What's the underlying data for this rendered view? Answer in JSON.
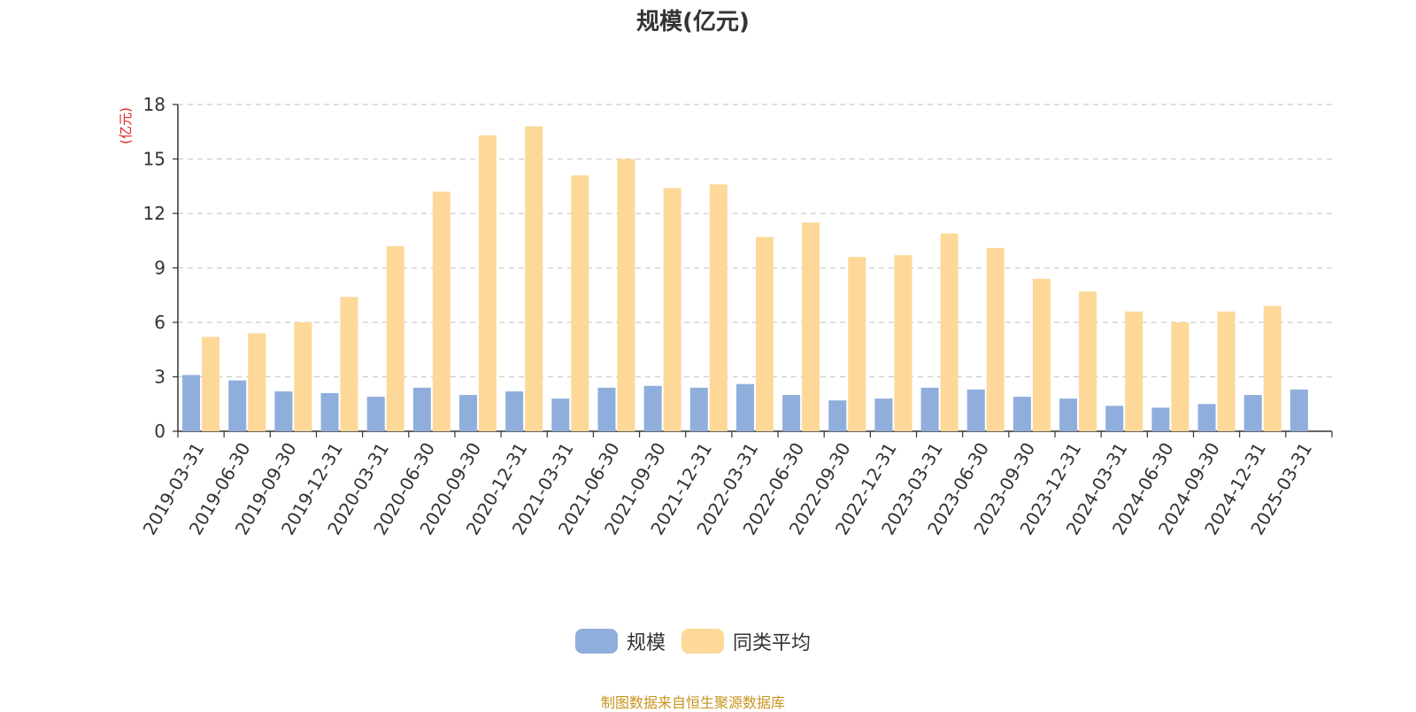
{
  "chart_data": {
    "type": "bar",
    "title": "规模(亿元)",
    "ylabel": "(亿元)",
    "ylim": [
      0,
      18
    ],
    "yticks": [
      0,
      3,
      6,
      9,
      12,
      15,
      18
    ],
    "grid": true,
    "legend_position": "bottom-center",
    "categories": [
      "2019-03-31",
      "2019-06-30",
      "2019-09-30",
      "2019-12-31",
      "2020-03-31",
      "2020-06-30",
      "2020-09-30",
      "2020-12-31",
      "2021-03-31",
      "2021-06-30",
      "2021-09-30",
      "2021-12-31",
      "2022-03-31",
      "2022-06-30",
      "2022-09-30",
      "2022-12-31",
      "2023-03-31",
      "2023-06-30",
      "2023-09-30",
      "2023-12-31",
      "2024-03-31",
      "2024-06-30",
      "2024-09-30",
      "2024-12-31",
      "2025-03-31"
    ],
    "series": [
      {
        "name": "规模",
        "color": "#8FAEDB",
        "values": [
          3.1,
          2.8,
          2.2,
          2.1,
          1.9,
          2.4,
          2.0,
          2.2,
          1.8,
          2.4,
          2.5,
          2.4,
          2.6,
          2.0,
          1.7,
          1.8,
          2.4,
          2.3,
          1.9,
          1.8,
          1.4,
          1.3,
          1.5,
          2.0,
          2.3
        ]
      },
      {
        "name": "同类平均",
        "color": "#FDD898",
        "values": [
          5.2,
          5.4,
          6.0,
          7.4,
          10.2,
          13.2,
          16.3,
          16.8,
          14.1,
          15.0,
          13.4,
          13.6,
          10.7,
          11.5,
          9.6,
          9.7,
          10.9,
          10.1,
          8.4,
          7.7,
          6.6,
          6.0,
          6.6,
          6.9,
          null
        ]
      }
    ]
  },
  "source_text": "制图数据来自恒生聚源数据库",
  "source_color": "#C8951F",
  "ylabel_color": "#E02020"
}
